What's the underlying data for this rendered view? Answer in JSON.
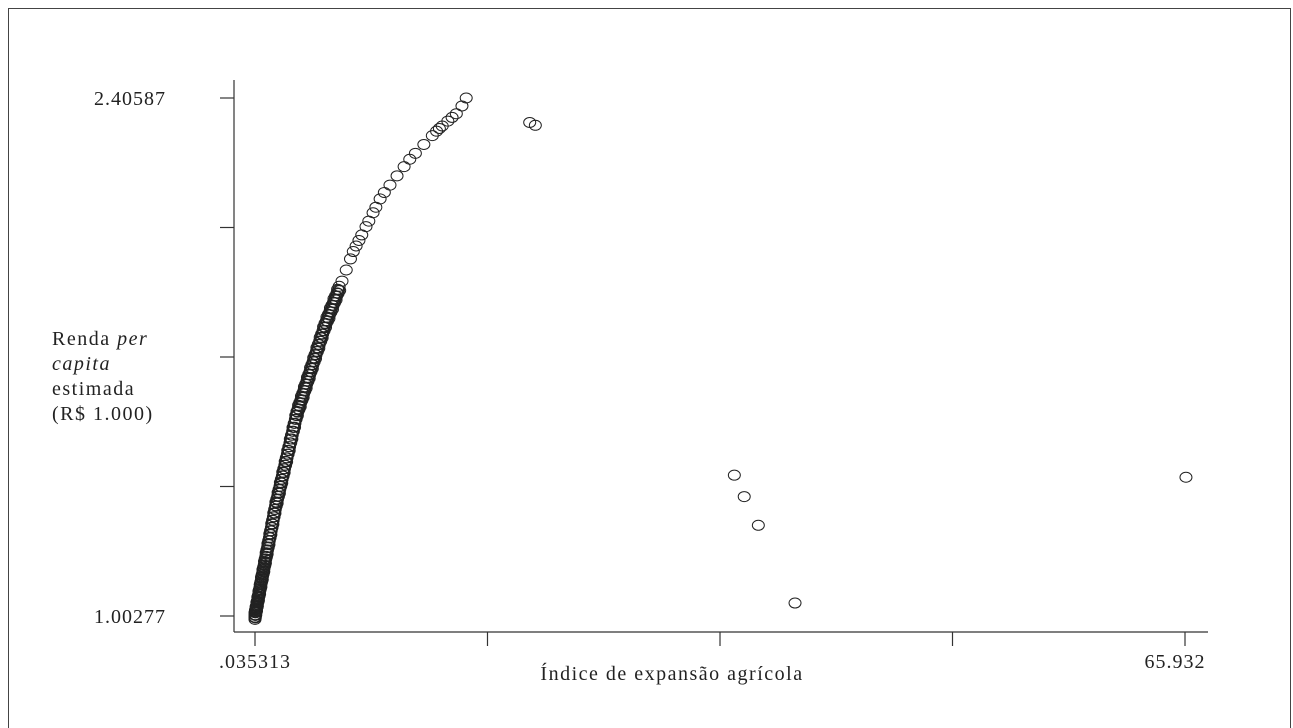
{
  "chart_data": {
    "type": "scatter",
    "xlabel": "Índice de expansão agrícola",
    "ylabel": {
      "line1_a": "Renda ",
      "line1_b": "per",
      "line2": "capita",
      "line3": "estimada",
      "line4": "(R$ 1.000)"
    },
    "x_tick_labels": [
      ".035313",
      "65.932"
    ],
    "y_tick_labels": [
      "2.40587",
      "1.00277"
    ],
    "xlim": [
      0.035313,
      65.932
    ],
    "ylim": [
      1.00277,
      2.40587
    ],
    "x_ticks": [
      0.035313,
      16.509,
      32.984,
      49.458,
      65.932
    ],
    "y_ticks": [
      1.00277,
      1.35355,
      1.70432,
      2.0551,
      2.40587
    ],
    "grid": false,
    "legend": "none",
    "marker": "hollow-ellipse",
    "outliers": [
      {
        "x": 19.5,
        "y": 2.3396
      },
      {
        "x": 19.9,
        "y": 2.3319
      },
      {
        "x": 34.0,
        "y": 1.3843
      },
      {
        "x": 34.7,
        "y": 1.3262
      },
      {
        "x": 35.7,
        "y": 1.2485
      },
      {
        "x": 38.3,
        "y": 1.0379
      },
      {
        "x": 66.0,
        "y": 1.3786
      }
    ],
    "curve": {
      "description_points": [
        {
          "x": 0.035,
          "y": 1.00277
        },
        {
          "x": 0.5,
          "y": 1.1
        },
        {
          "x": 1.5,
          "y": 1.3
        },
        {
          "x": 3.0,
          "y": 1.55
        },
        {
          "x": 5.0,
          "y": 1.79
        },
        {
          "x": 7.0,
          "y": 1.99
        },
        {
          "x": 9.0,
          "y": 2.14
        },
        {
          "x": 11.0,
          "y": 2.24
        },
        {
          "x": 13.0,
          "y": 2.32
        },
        {
          "x": 14.5,
          "y": 2.37
        },
        {
          "x": 15.0,
          "y": 2.40587
        }
      ]
    }
  }
}
